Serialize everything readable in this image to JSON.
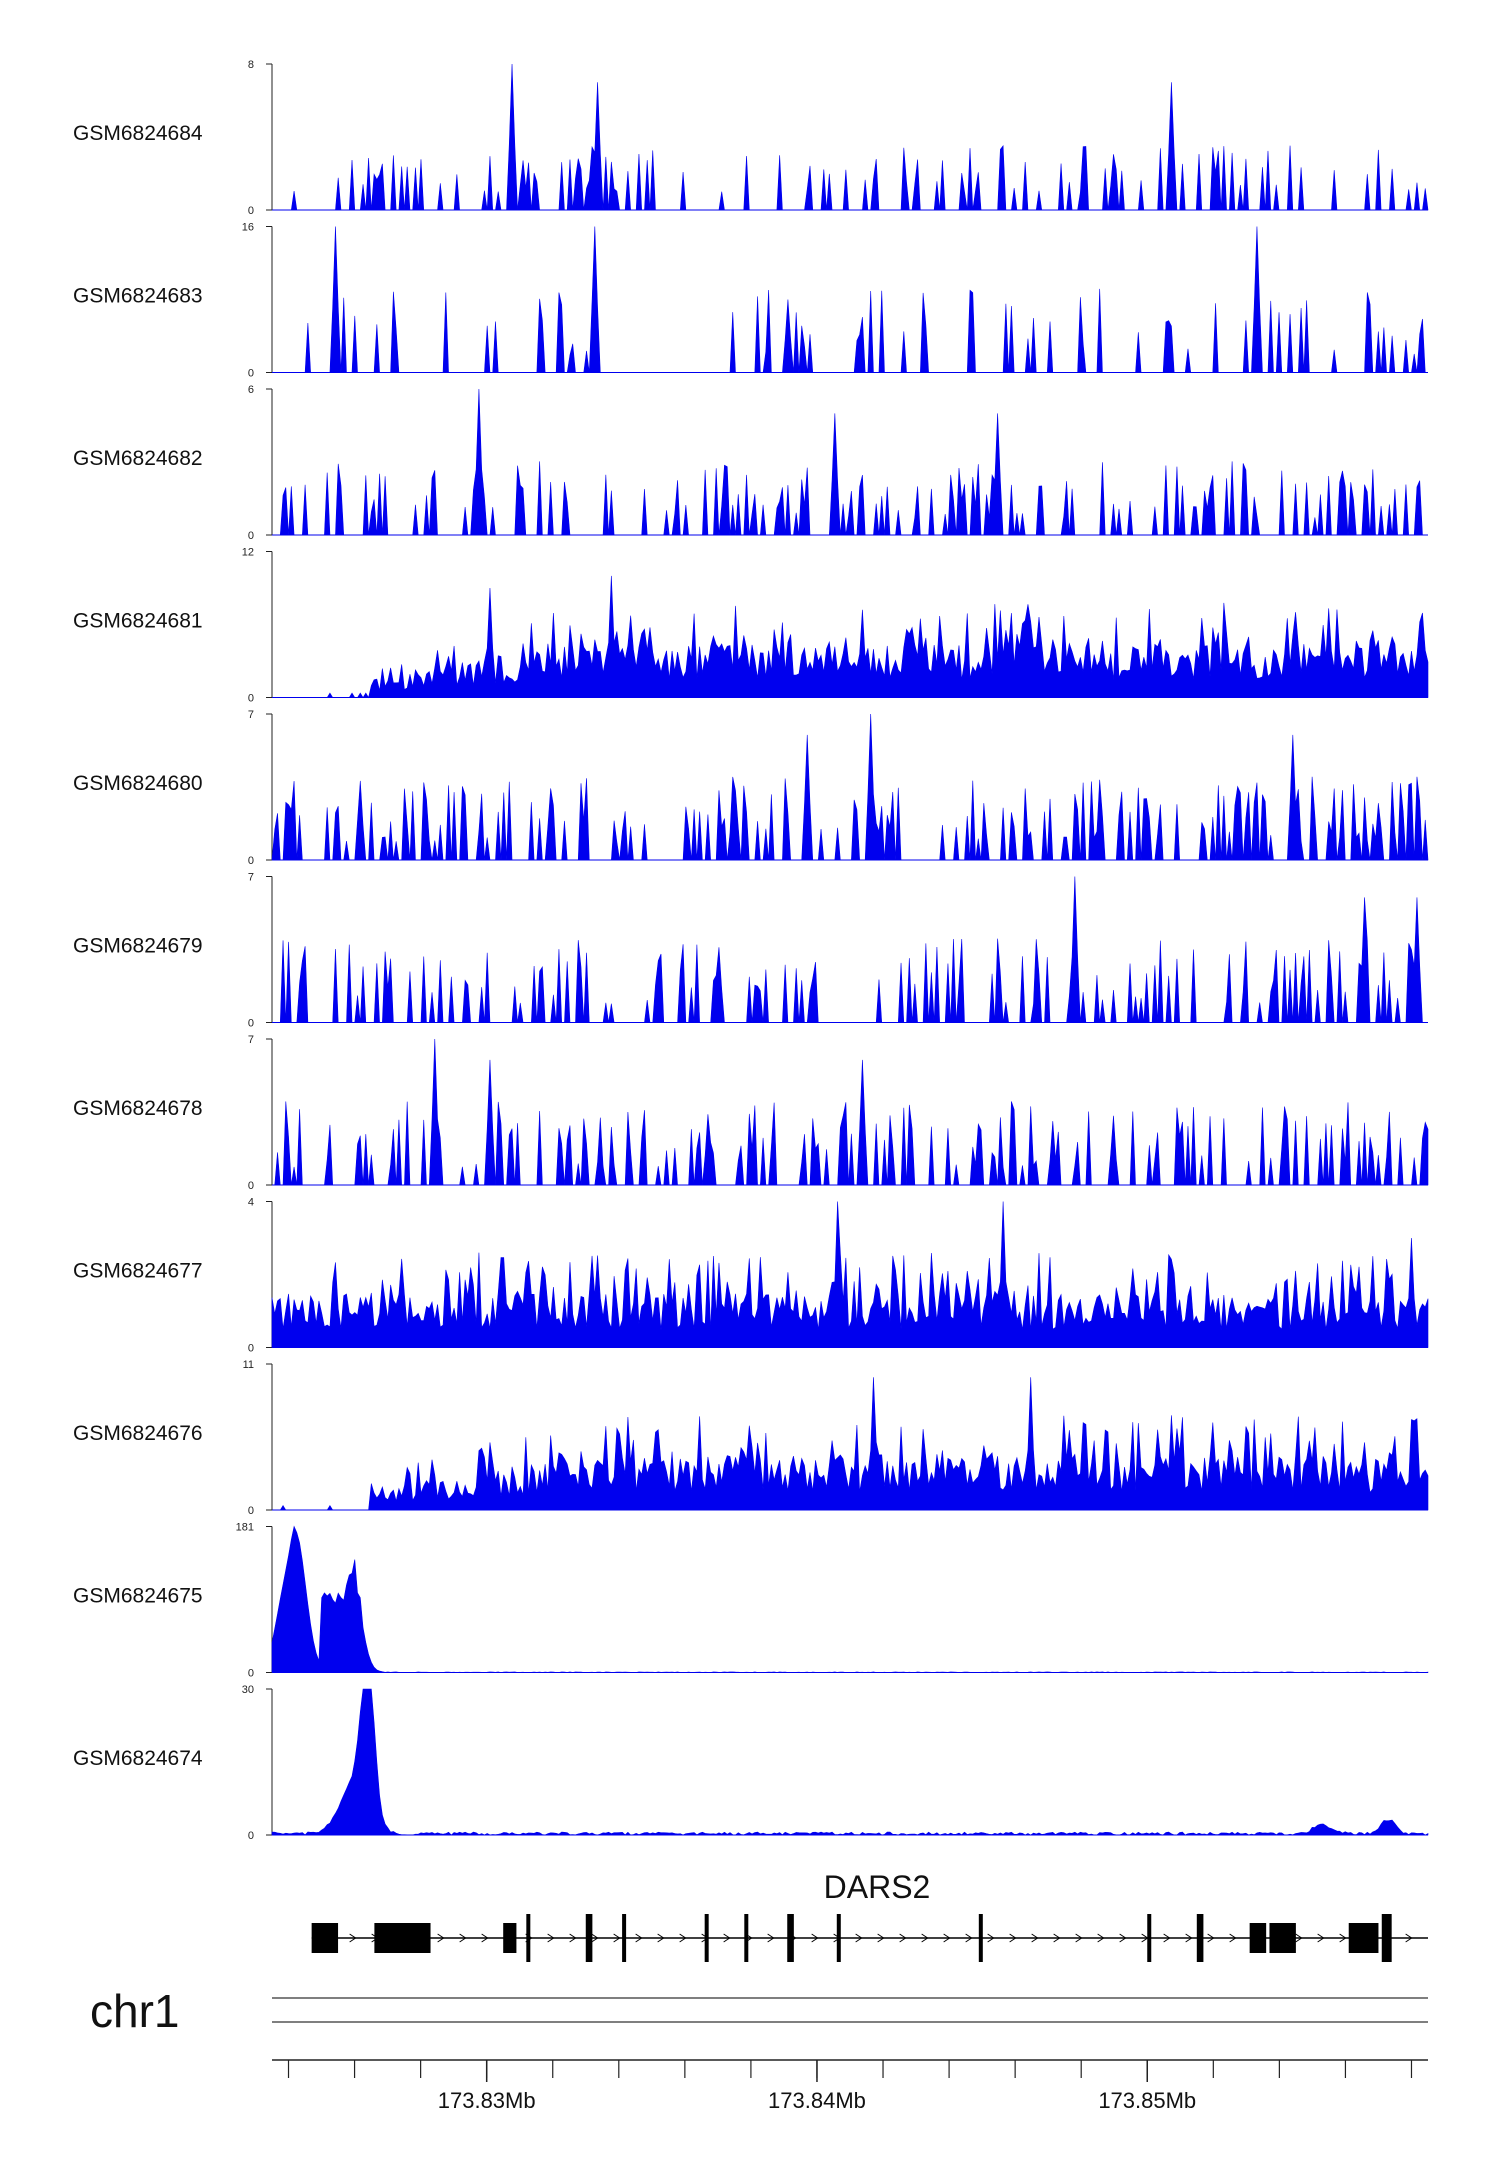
{
  "chart_data": {
    "type": "area",
    "title": "",
    "chromosome": "chr1",
    "gene": "DARS2",
    "region_mb": [
      173.8235,
      173.8585
    ],
    "axis_ticks": [
      {
        "mb": 173.83,
        "label": "173.83Mb"
      },
      {
        "mb": 173.84,
        "label": "173.84Mb"
      },
      {
        "mb": 173.85,
        "label": "173.85Mb"
      }
    ],
    "minor_tick_spacing_mb": 0.002,
    "fill_color": "#0000ee",
    "tracks": [
      {
        "name": "GSM6824684",
        "ylim": [
          0,
          8
        ],
        "ymax_label": "8",
        "ymin_label": "0"
      },
      {
        "name": "GSM6824683",
        "ylim": [
          0,
          16
        ],
        "ymax_label": "16",
        "ymin_label": "0"
      },
      {
        "name": "GSM6824682",
        "ylim": [
          0,
          6
        ],
        "ymax_label": "6",
        "ymin_label": "0"
      },
      {
        "name": "GSM6824681",
        "ylim": [
          0,
          12
        ],
        "ymax_label": "12",
        "ymin_label": "0"
      },
      {
        "name": "GSM6824680",
        "ylim": [
          0,
          7
        ],
        "ymax_label": "7",
        "ymin_label": "0"
      },
      {
        "name": "GSM6824679",
        "ylim": [
          0,
          7
        ],
        "ymax_label": "7",
        "ymin_label": "0"
      },
      {
        "name": "GSM6824678",
        "ylim": [
          0,
          7
        ],
        "ymax_label": "7",
        "ymin_label": "0"
      },
      {
        "name": "GSM6824677",
        "ylim": [
          0,
          4
        ],
        "ymax_label": "4",
        "ymin_label": "0"
      },
      {
        "name": "GSM6824676",
        "ylim": [
          0,
          11
        ],
        "ymax_label": "11",
        "ymin_label": "0"
      },
      {
        "name": "GSM6824675",
        "ylim": [
          0,
          181
        ],
        "ymax_label": "181",
        "ymin_label": "0"
      },
      {
        "name": "GSM6824674",
        "ylim": [
          0,
          30
        ],
        "ymax_label": "30",
        "ymin_label": "0"
      }
    ],
    "peaks": {
      "GSM6824684": [
        [
          173.8308,
          8
        ],
        [
          173.83338,
          7
        ],
        [
          173.8507,
          7
        ]
      ],
      "GSM6824683": [
        [
          173.82545,
          16
        ],
        [
          173.8333,
          16
        ],
        [
          173.85335,
          16
        ],
        [
          173.83915,
          8
        ]
      ],
      "GSM6824682": [
        [
          173.8298,
          6
        ],
        [
          173.8405,
          5
        ],
        [
          173.8455,
          5
        ]
      ],
      "GSM6824681": [
        [
          173.8301,
          9
        ],
        [
          173.8338,
          10
        ]
      ],
      "GSM6824680": [
        [
          173.8416,
          7
        ],
        [
          173.8397,
          6
        ],
        [
          173.8544,
          6
        ]
      ],
      "GSM6824679": [
        [
          173.8478,
          7
        ],
        [
          173.8566,
          6
        ],
        [
          173.8582,
          6
        ]
      ],
      "GSM6824678": [
        [
          173.8284,
          7
        ],
        [
          173.8301,
          6
        ],
        [
          173.8414,
          6
        ]
      ],
      "GSM6824677": [
        [
          173.8406,
          4
        ],
        [
          173.8456,
          4
        ],
        [
          173.858,
          3
        ]
      ],
      "GSM6824676": [
        [
          173.8417,
          10
        ],
        [
          173.8465,
          10
        ]
      ],
      "GSM6824675": [
        [
          173.8242,
          181
        ],
        [
          173.826,
          140
        ]
      ],
      "GSM6824674": [
        [
          173.8264,
          30
        ],
        [
          173.8572,
          3
        ]
      ]
    },
    "exons_mb": [
      [
        173.8247,
        173.8255
      ],
      [
        173.8266,
        173.8283
      ],
      [
        173.8305,
        173.8309
      ],
      [
        173.8312,
        173.8313
      ],
      [
        173.833,
        173.8332
      ],
      [
        173.8341,
        173.8342
      ],
      [
        173.8366,
        173.8367
      ],
      [
        173.8378,
        173.8379
      ],
      [
        173.8391,
        173.8393
      ],
      [
        173.8406,
        173.8407
      ],
      [
        173.8449,
        173.845
      ],
      [
        173.85,
        173.8501
      ],
      [
        173.8515,
        173.8517
      ],
      [
        173.8531,
        173.8536
      ],
      [
        173.8537,
        173.8545
      ],
      [
        173.8561,
        173.857
      ],
      [
        173.8571,
        173.8574
      ]
    ],
    "transcript_span_mb": [
      173.8247,
      173.8585
    ]
  }
}
